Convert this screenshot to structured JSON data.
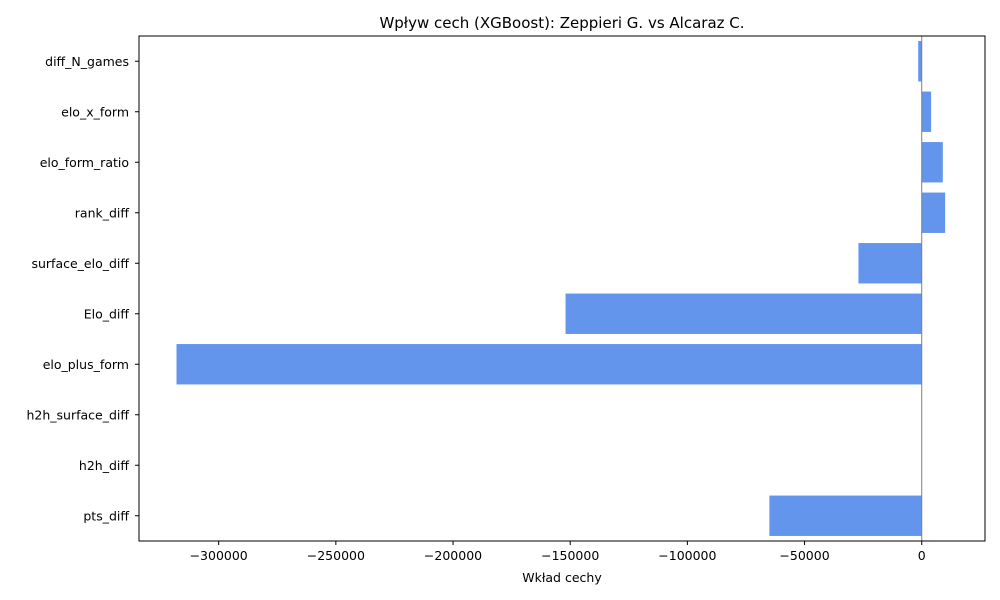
{
  "chart_data": {
    "type": "bar",
    "orientation": "horizontal",
    "title": "Wpływ cech (XGBoost): Zeppieri G. vs Alcaraz C.",
    "xlabel": "Wkład cechy",
    "ylabel": "",
    "categories": [
      "diff_N_games",
      "elo_x_form",
      "elo_form_ratio",
      "rank_diff",
      "surface_elo_diff",
      "Elo_diff",
      "elo_plus_form",
      "h2h_surface_diff",
      "h2h_diff",
      "pts_diff"
    ],
    "values": [
      -1500,
      4000,
      9000,
      10000,
      -27000,
      -152000,
      -318000,
      0,
      0,
      -65000
    ],
    "xlim": [
      -334000,
      27000
    ],
    "xticks": [
      -300000,
      -250000,
      -200000,
      -150000,
      -100000,
      -50000,
      0
    ],
    "xtick_labels": [
      "−300000",
      "−250000",
      "−200000",
      "−150000",
      "−100000",
      "−50000",
      "0"
    ],
    "bar_color": "#6495ED",
    "zero_line_color": "#808080",
    "grid": false
  }
}
